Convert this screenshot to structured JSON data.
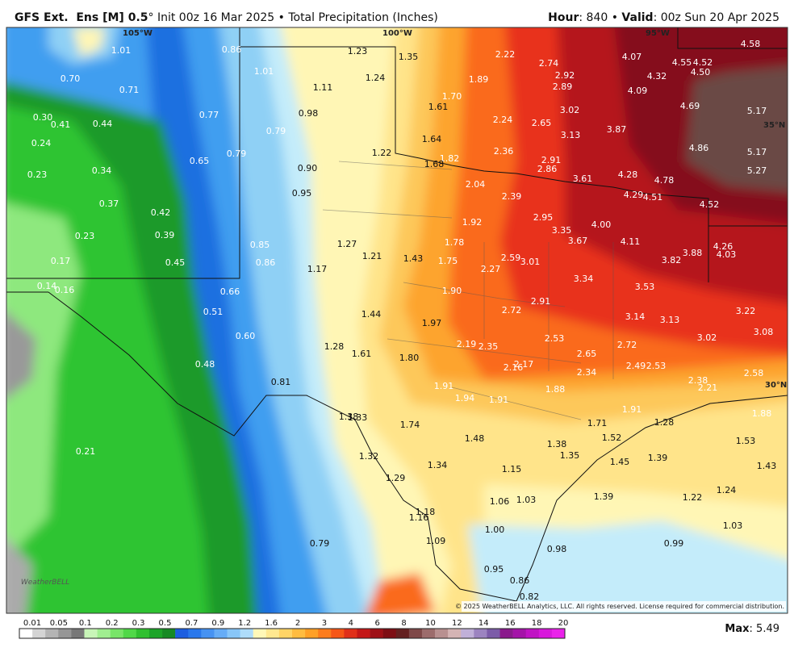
{
  "header": {
    "title_model": "GFS Ext.  Ens [M] 0.5",
    "title_rest": "° Init 00z 16 Mar 2025 • Total Precipitation (Inches)",
    "hour_label": "Hour",
    "hour_value": ": 840 • ",
    "valid_label": "Valid",
    "valid_value": ": 00z Sun 20 Apr 2025"
  },
  "map": {
    "grid_labels": [
      "105°W",
      "100°W",
      "95°W",
      "35°N",
      "30°N"
    ],
    "values": [
      "1.01",
      "0.86",
      "1.23",
      "1.35",
      "2.22",
      "2.74",
      "4.07",
      "4.58",
      "4.55",
      "4.52",
      "4.50",
      "0.70",
      "0.71",
      "1.01",
      "1.24",
      "1.11",
      "1.89",
      "2.92",
      "2.89",
      "4.32",
      "4.09",
      "1.70",
      "1.61",
      "0.77",
      "0.98",
      "3.02",
      "4.69",
      "5.17",
      "0.30",
      "0.41",
      "0.44",
      "2.24",
      "2.65",
      "3.87",
      "0.79",
      "3.13",
      "0.24",
      "1.64",
      "1.22",
      "0.79",
      "2.36",
      "4.86",
      "5.17",
      "0.65",
      "1.82",
      "1.68",
      "2.91",
      "2.86",
      "0.34",
      "0.90",
      "4.28",
      "5.27",
      "0.23",
      "3.61",
      "4.78",
      "2.04",
      "0.95",
      "2.39",
      "4.29",
      "4.51",
      "0.37",
      "4.52",
      "0.42",
      "2.95",
      "1.92",
      "4.00",
      "3.35",
      "0.23",
      "0.39",
      "1.78",
      "3.67",
      "4.11",
      "4.26",
      "1.27",
      "0.85",
      "4.03",
      "3.88",
      "1.21",
      "1.43",
      "2.59",
      "3.82",
      "0.17",
      "0.45",
      "0.86",
      "1.75",
      "3.01",
      "1.17",
      "2.27",
      "3.34",
      "0.14",
      "0.16",
      "3.53",
      "0.66",
      "1.90",
      "2.91",
      "2.72",
      "3.22",
      "1.44",
      "0.51",
      "3.14",
      "3.13",
      "1.97",
      "3.08",
      "0.60",
      "2.53",
      "3.02",
      "2.19",
      "2.35",
      "1.28",
      "1.61",
      "2.72",
      "2.65",
      "1.80",
      "0.48",
      "2.17",
      "2.16",
      "2.49",
      "2.53",
      "2.34",
      "2.58",
      "2.38",
      "0.81",
      "2.21",
      "1.91",
      "1.88",
      "1.94",
      "1.91",
      "1.38",
      "1.33",
      "1.91",
      "1.88",
      "1.71",
      "1.28",
      "1.74",
      "1.53",
      "1.48",
      "1.52",
      "0.21",
      "1.38",
      "1.35",
      "1.32",
      "1.39",
      "1.45",
      "1.34",
      "1.43",
      "1.15",
      "1.29",
      "1.24",
      "1.39",
      "1.22",
      "1.06",
      "1.03",
      "1.18",
      "1.16",
      "1.03",
      "1.00",
      "0.79",
      "1.09",
      "0.99",
      "0.98",
      "0.95",
      "0.86",
      "0.82"
    ],
    "copyright": "© 2025 WeatherBELL Analytics, LLC. All rights reserved. License required for commercial distribution.",
    "logo": "WeatherBELL"
  },
  "legend": {
    "labels": [
      "0.01",
      "0.05",
      "0.1",
      "0.2",
      "0.3",
      "0.5",
      "0.7",
      "0.9",
      "1.2",
      "1.6",
      "2",
      "3",
      "4",
      "6",
      "8",
      "10",
      "12",
      "14",
      "16",
      "18",
      "20"
    ],
    "colors": [
      "#ffffff",
      "#d4d4d4",
      "#b4b4b4",
      "#969696",
      "#787878",
      "#c8f5b8",
      "#a0ee90",
      "#78e468",
      "#50d848",
      "#30c030",
      "#1ca428",
      "#168a24",
      "#1c5ee0",
      "#2a78ec",
      "#4692f2",
      "#66acf6",
      "#88c6f8",
      "#aedcfa",
      "#fff8b8",
      "#ffe890",
      "#ffd466",
      "#ffbc40",
      "#ffa026",
      "#fc7c1c",
      "#f65616",
      "#e0301a",
      "#c41818",
      "#9e1016",
      "#7e0e14",
      "#642020",
      "#7e4848",
      "#9c6c6c",
      "#b89090",
      "#d4b4b4",
      "#c0b0d8",
      "#9c84c0",
      "#7c5ca8",
      "#8a1a8c",
      "#a414a8",
      "#c014c4",
      "#d818dc",
      "#ea22ea"
    ]
  },
  "footer": {
    "max_label": "Max",
    "max_value": ": 5.49"
  }
}
